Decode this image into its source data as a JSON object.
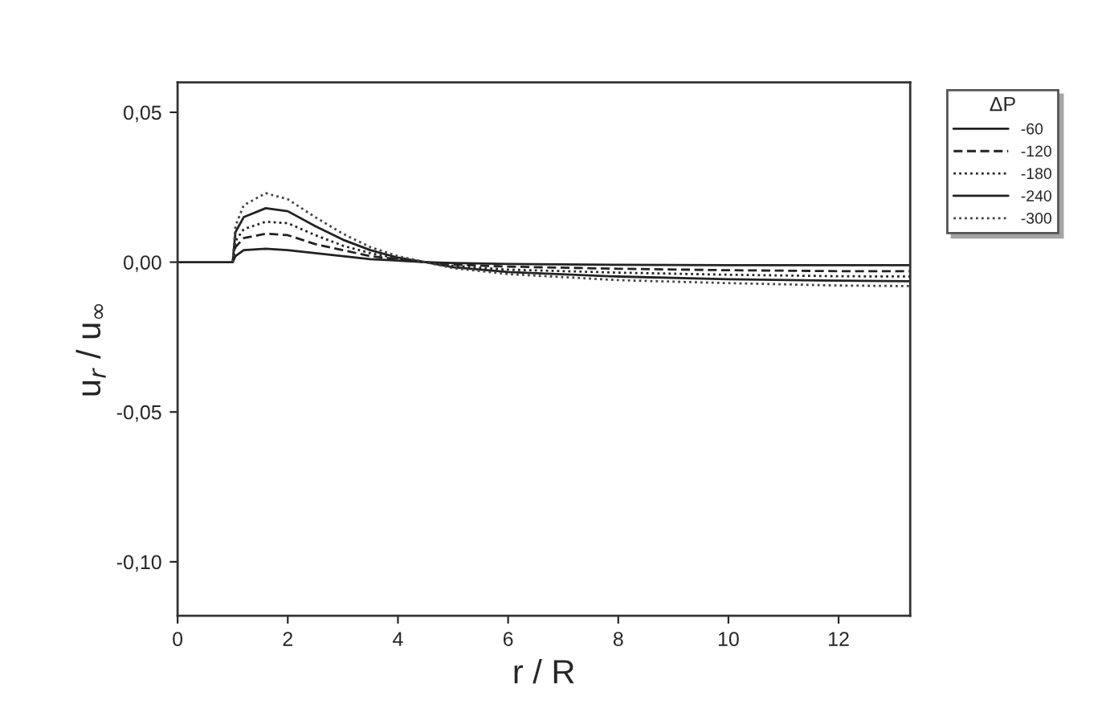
{
  "chart_data": {
    "type": "line",
    "xlabel": "r / R",
    "ylabel": "u$_{r}$ / u$_{∞}$",
    "legend_title": "ΔP",
    "legend": "right",
    "xlim": [
      0,
      13.3
    ],
    "xticks": [
      0,
      2,
      4,
      6,
      8,
      10,
      12
    ],
    "ylim": [
      -0.118,
      0.06
    ],
    "yticks": [
      {
        "value": 0.05,
        "label": "0,05"
      },
      {
        "value": 0.0,
        "label": "0,00"
      },
      {
        "value": -0.05,
        "label": "-0,05"
      },
      {
        "value": -0.1,
        "label": "-0,10"
      }
    ],
    "grid": false,
    "series": [
      {
        "name": "-60",
        "color": "#222222",
        "line_style": "solid",
        "x": [
          0,
          1.0,
          1.05,
          1.2,
          1.6,
          2.0,
          2.5,
          3.0,
          3.5,
          4.0,
          4.5,
          5,
          6,
          8,
          10,
          12,
          13.3
        ],
        "values": [
          0,
          0,
          0.002,
          0.004,
          0.0045,
          0.004,
          0.003,
          0.002,
          0.001,
          0.0005,
          0,
          -0.0003,
          -0.0006,
          -0.0009,
          -0.001,
          -0.001,
          -0.001
        ]
      },
      {
        "name": "-120",
        "color": "#222222",
        "line_style": "dashed",
        "x": [
          1.0,
          1.05,
          1.2,
          1.6,
          2.0,
          2.5,
          3.0,
          3.5,
          4.0,
          4.5,
          5,
          6,
          8,
          10,
          12,
          13.3
        ],
        "values": [
          0,
          0.005,
          0.008,
          0.0095,
          0.009,
          0.006,
          0.004,
          0.002,
          0.001,
          0,
          -0.0008,
          -0.0015,
          -0.0022,
          -0.0027,
          -0.003,
          -0.003
        ]
      },
      {
        "name": "-180",
        "color": "#222222",
        "line_style": "dotted",
        "x": [
          1.0,
          1.05,
          1.2,
          1.6,
          2.0,
          2.5,
          3.0,
          3.5,
          4.0,
          4.5,
          5,
          6,
          8,
          10,
          12,
          13.3
        ],
        "values": [
          0,
          0.007,
          0.011,
          0.0135,
          0.013,
          0.009,
          0.0055,
          0.003,
          0.0012,
          0,
          -0.0012,
          -0.0025,
          -0.0035,
          -0.0042,
          -0.0047,
          -0.0048
        ]
      },
      {
        "name": "-240",
        "color": "#222222",
        "line_style": "solid",
        "x": [
          1.0,
          1.05,
          1.2,
          1.6,
          2.0,
          2.5,
          3.0,
          3.5,
          4.0,
          4.5,
          5,
          6,
          8,
          10,
          12,
          13.3
        ],
        "values": [
          0,
          0.01,
          0.015,
          0.018,
          0.017,
          0.012,
          0.0075,
          0.004,
          0.0015,
          0,
          -0.0017,
          -0.0033,
          -0.0048,
          -0.0057,
          -0.0062,
          -0.0064
        ]
      },
      {
        "name": "-300",
        "color": "#444444",
        "line_style": "dotted",
        "x": [
          1.0,
          1.05,
          1.2,
          1.6,
          2.0,
          2.5,
          3.0,
          3.5,
          4.0,
          4.5,
          5,
          6,
          8,
          10,
          12,
          13.3
        ],
        "values": [
          0,
          0.012,
          0.019,
          0.023,
          0.021,
          0.015,
          0.0095,
          0.005,
          0.002,
          0,
          -0.002,
          -0.004,
          -0.006,
          -0.007,
          -0.0078,
          -0.008
        ]
      }
    ]
  }
}
